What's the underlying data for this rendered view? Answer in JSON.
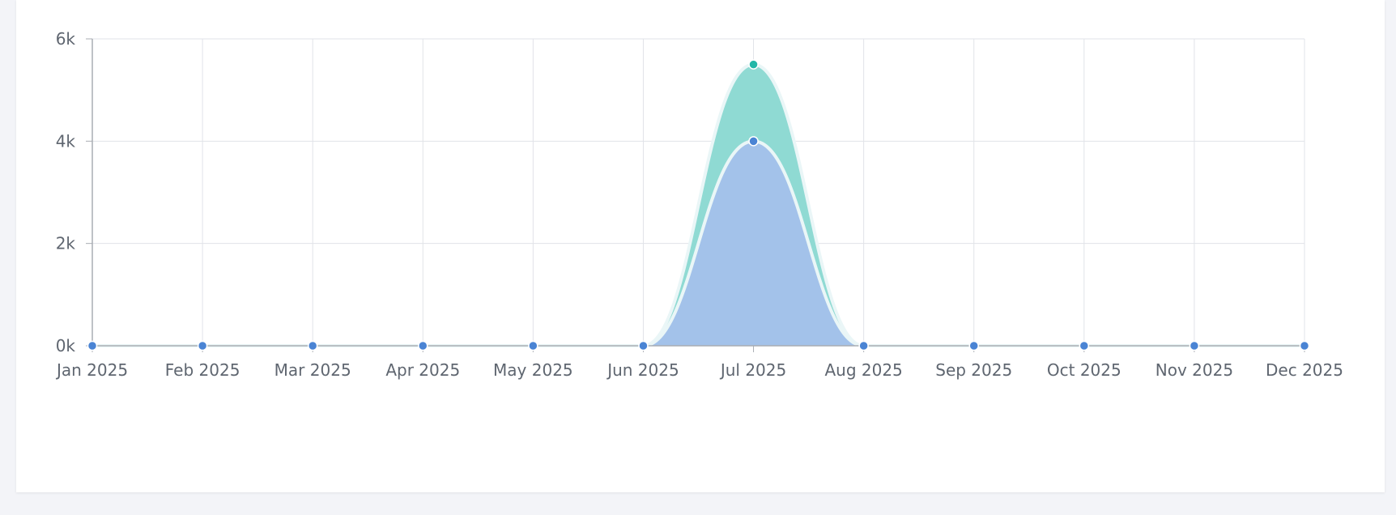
{
  "chart_data": {
    "type": "area",
    "stacked": true,
    "categories": [
      "Jan 2025",
      "Feb 2025",
      "Mar 2025",
      "Apr 2025",
      "May 2025",
      "Jun 2025",
      "Jul 2025",
      "Aug 2025",
      "Sep 2025",
      "Oct 2025",
      "Nov 2025",
      "Dec 2025"
    ],
    "series": [
      {
        "values": [
          0,
          0,
          0,
          0,
          0,
          0,
          4000,
          0,
          0,
          0,
          0,
          0
        ],
        "color": "#4a84d4",
        "fill": "#a3c2ea"
      },
      {
        "values": [
          0,
          0,
          0,
          0,
          0,
          0,
          1500,
          0,
          0,
          0,
          0,
          0
        ],
        "color": "#22b7a8",
        "fill": "#8fdad3"
      }
    ],
    "y_ticks": [
      "0k",
      "2k",
      "4k",
      "6k"
    ],
    "ylim": [
      0,
      6000
    ],
    "grid": true,
    "legend": false
  }
}
